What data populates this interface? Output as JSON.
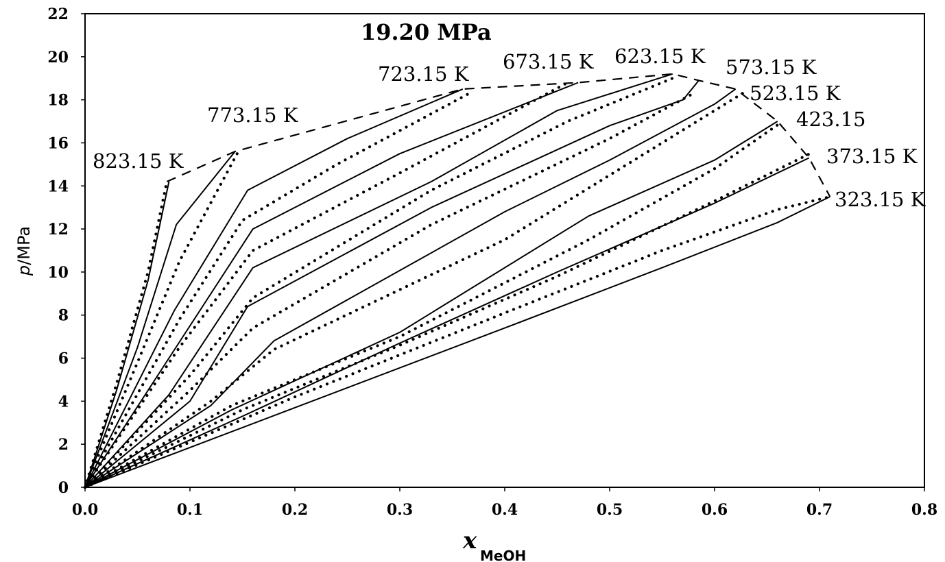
{
  "chart_data": {
    "type": "line",
    "title": "19.20 MPa",
    "xlabel": {
      "main": "x",
      "sub": "MeOH"
    },
    "ylabel": {
      "italic": "p",
      "text": "/MPa"
    },
    "xlim": [
      0,
      0.8
    ],
    "ylim": [
      0,
      22
    ],
    "xticks": [
      "0.0",
      "0.1",
      "0.2",
      "0.3",
      "0.4",
      "0.5",
      "0.6",
      "0.7",
      "0.8"
    ],
    "yticks": [
      "0",
      "2",
      "4",
      "6",
      "8",
      "10",
      "12",
      "14",
      "16",
      "18",
      "20",
      "22"
    ],
    "grid": false,
    "series": [
      {
        "name": "823.15 K",
        "solid": [
          [
            0,
            0
          ],
          [
            0.03,
            4.5
          ],
          [
            0.06,
            9.6
          ],
          [
            0.08,
            14.2
          ]
        ],
        "dotted": [
          [
            0,
            0
          ],
          [
            0.03,
            4.8
          ],
          [
            0.06,
            10.0
          ],
          [
            0.078,
            14.2
          ]
        ]
      },
      {
        "name": "773.15 K",
        "solid": [
          [
            0,
            0
          ],
          [
            0.05,
            6.5
          ],
          [
            0.087,
            12.2
          ],
          [
            0.143,
            15.6
          ]
        ],
        "dotted": [
          [
            0,
            0
          ],
          [
            0.05,
            5.8
          ],
          [
            0.09,
            10.5
          ],
          [
            0.145,
            15.5
          ]
        ]
      },
      {
        "name": "723.15 K",
        "solid": [
          [
            0,
            0
          ],
          [
            0.085,
            8.2
          ],
          [
            0.155,
            13.8
          ],
          [
            0.25,
            16.2
          ],
          [
            0.36,
            18.5
          ]
        ],
        "dotted": [
          [
            0,
            0
          ],
          [
            0.09,
            7.8
          ],
          [
            0.15,
            12.4
          ],
          [
            0.24,
            15.0
          ],
          [
            0.37,
            18.4
          ]
        ]
      },
      {
        "name": "673.15 K",
        "solid": [
          [
            0,
            0
          ],
          [
            0.08,
            6.0
          ],
          [
            0.16,
            12.0
          ],
          [
            0.3,
            15.5
          ],
          [
            0.47,
            18.8
          ]
        ],
        "dotted": [
          [
            0,
            0
          ],
          [
            0.09,
            6.5
          ],
          [
            0.16,
            11.0
          ],
          [
            0.3,
            14.6
          ],
          [
            0.46,
            18.8
          ]
        ]
      },
      {
        "name": "623.15 K",
        "solid": [
          [
            0,
            0
          ],
          [
            0.08,
            4.3
          ],
          [
            0.16,
            10.2
          ],
          [
            0.33,
            14.2
          ],
          [
            0.45,
            17.5
          ],
          [
            0.56,
            19.2
          ]
        ],
        "dotted": [
          [
            0,
            0
          ],
          [
            0.1,
            5.2
          ],
          [
            0.16,
            8.8
          ],
          [
            0.33,
            13.8
          ],
          [
            0.46,
            17.0
          ],
          [
            0.56,
            19.0
          ]
        ]
      },
      {
        "name": "573.15 K",
        "solid": [
          [
            0,
            0
          ],
          [
            0.1,
            4.0
          ],
          [
            0.155,
            8.4
          ],
          [
            0.33,
            13.0
          ],
          [
            0.5,
            16.8
          ],
          [
            0.57,
            18.0
          ],
          [
            0.585,
            18.9
          ]
        ],
        "dotted": [
          [
            0,
            0
          ],
          [
            0.1,
            4.5
          ],
          [
            0.16,
            7.4
          ],
          [
            0.33,
            12.2
          ],
          [
            0.5,
            16.2
          ],
          [
            0.58,
            18.3
          ]
        ]
      },
      {
        "name": "523.15 K",
        "solid": [
          [
            0,
            0
          ],
          [
            0.12,
            3.8
          ],
          [
            0.18,
            6.8
          ],
          [
            0.4,
            12.8
          ],
          [
            0.5,
            15.2
          ],
          [
            0.6,
            17.8
          ],
          [
            0.62,
            18.5
          ]
        ],
        "dotted": [
          [
            0,
            0
          ],
          [
            0.12,
            4.0
          ],
          [
            0.18,
            6.4
          ],
          [
            0.4,
            11.5
          ],
          [
            0.5,
            14.5
          ],
          [
            0.6,
            17.5
          ],
          [
            0.63,
            18.4
          ]
        ]
      },
      {
        "name": "423.15",
        "solid": [
          [
            0,
            0
          ],
          [
            0.14,
            3.6
          ],
          [
            0.3,
            7.2
          ],
          [
            0.48,
            12.6
          ],
          [
            0.6,
            15.2
          ],
          [
            0.66,
            17.0
          ]
        ],
        "dotted": [
          [
            0,
            0
          ],
          [
            0.14,
            3.8
          ],
          [
            0.3,
            7.0
          ],
          [
            0.48,
            11.5
          ],
          [
            0.6,
            14.8
          ],
          [
            0.665,
            17.0
          ]
        ]
      },
      {
        "name": "373.15 K",
        "solid": [
          [
            0,
            0
          ],
          [
            0.15,
            3.3
          ],
          [
            0.3,
            6.7
          ],
          [
            0.45,
            10.0
          ],
          [
            0.6,
            13.2
          ],
          [
            0.69,
            15.3
          ]
        ],
        "dotted": [
          [
            0,
            0
          ],
          [
            0.15,
            3.6
          ],
          [
            0.3,
            6.6
          ],
          [
            0.45,
            9.8
          ],
          [
            0.6,
            13.3
          ],
          [
            0.695,
            15.6
          ]
        ]
      },
      {
        "name": "323.15 K",
        "solid": [
          [
            0,
            0
          ],
          [
            0.2,
            3.7
          ],
          [
            0.4,
            7.4
          ],
          [
            0.55,
            10.2
          ],
          [
            0.66,
            12.3
          ],
          [
            0.71,
            13.5
          ]
        ],
        "dotted": [
          [
            0,
            0
          ],
          [
            0.2,
            4.2
          ],
          [
            0.4,
            8.1
          ],
          [
            0.55,
            11.0
          ],
          [
            0.66,
            12.9
          ],
          [
            0.71,
            13.5
          ]
        ]
      }
    ],
    "envelope": [
      [
        0.078,
        14.2
      ],
      [
        0.143,
        15.6
      ],
      [
        0.36,
        18.5
      ],
      [
        0.47,
        18.8
      ],
      [
        0.56,
        19.2
      ],
      [
        0.585,
        18.9
      ],
      [
        0.62,
        18.5
      ],
      [
        0.66,
        17.0
      ],
      [
        0.69,
        15.3
      ],
      [
        0.71,
        13.5
      ]
    ]
  }
}
